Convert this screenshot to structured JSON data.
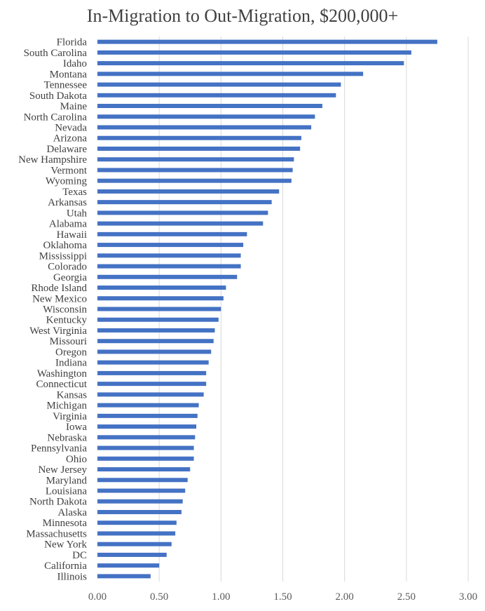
{
  "chart_data": {
    "type": "bar",
    "orientation": "horizontal",
    "title": "In-Migration to Out-Migration, $200,000+",
    "xlabel": "",
    "ylabel": "",
    "xlim": [
      0,
      3
    ],
    "x_ticks": [
      "0.00",
      "0.50",
      "1.00",
      "1.50",
      "2.00",
      "2.50",
      "3.00"
    ],
    "grid": true,
    "bar_color": "#4472c4",
    "categories": [
      "Florida",
      "South Carolina",
      "Idaho",
      "Montana",
      "Tennessee",
      "South Dakota",
      "Maine",
      "North Carolina",
      "Nevada",
      "Arizona",
      "Delaware",
      "New Hampshire",
      "Vermont",
      "Wyoming",
      "Texas",
      "Arkansas",
      "Utah",
      "Alabama",
      "Hawaii",
      "Oklahoma",
      "Mississippi",
      "Colorado",
      "Georgia",
      "Rhode Island",
      "New Mexico",
      "Wisconsin",
      "Kentucky",
      "West Virginia",
      "Missouri",
      "Oregon",
      "Indiana",
      "Washington",
      "Connecticut",
      "Kansas",
      "Michigan",
      "Virginia",
      "Iowa",
      "Nebraska",
      "Pennsylvania",
      "Ohio",
      "New Jersey",
      "Maryland",
      "Louisiana",
      "North Dakota",
      "Alaska",
      "Minnesota",
      "Massachusetts",
      "New York",
      "DC",
      "California",
      "Illinois"
    ],
    "values": [
      2.75,
      2.54,
      2.48,
      2.15,
      1.97,
      1.93,
      1.82,
      1.76,
      1.73,
      1.65,
      1.64,
      1.59,
      1.58,
      1.57,
      1.47,
      1.41,
      1.38,
      1.34,
      1.21,
      1.18,
      1.16,
      1.16,
      1.13,
      1.04,
      1.02,
      1.0,
      0.98,
      0.95,
      0.94,
      0.92,
      0.9,
      0.88,
      0.88,
      0.86,
      0.82,
      0.81,
      0.8,
      0.79,
      0.78,
      0.78,
      0.75,
      0.73,
      0.71,
      0.69,
      0.68,
      0.64,
      0.63,
      0.6,
      0.56,
      0.5,
      0.43
    ]
  }
}
